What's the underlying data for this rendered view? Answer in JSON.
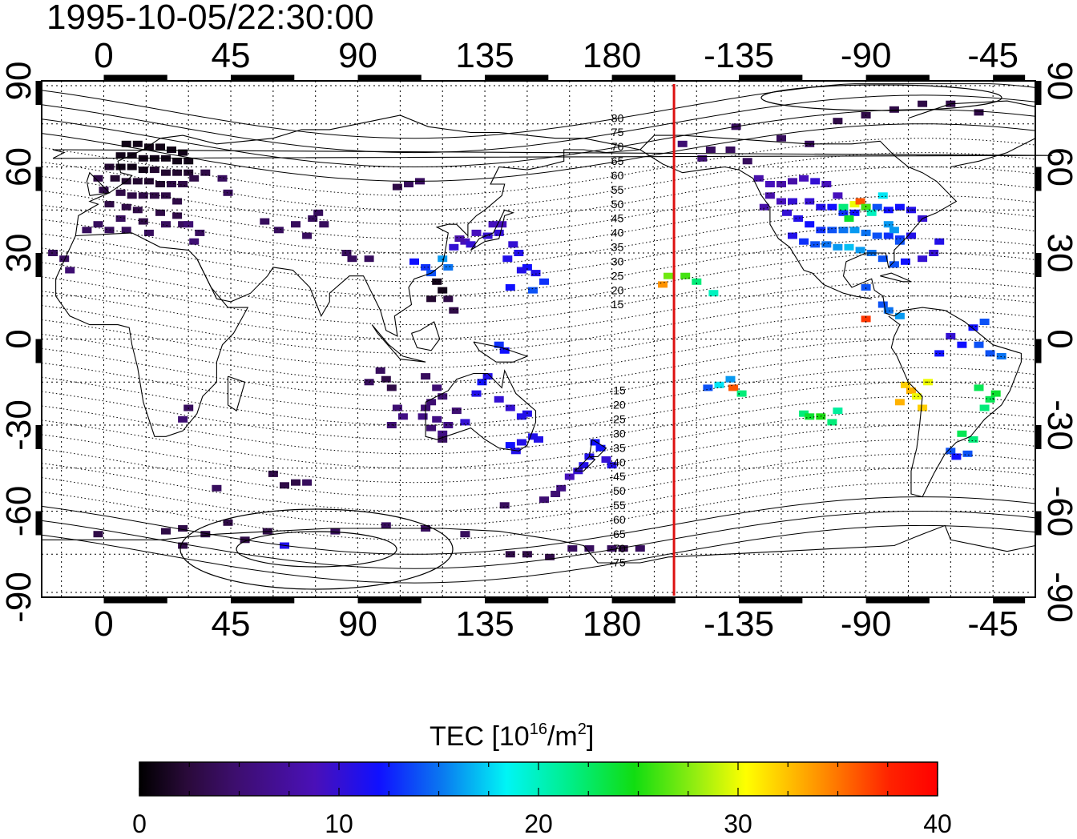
{
  "title": "1995-10-05/22:30:00",
  "colorbar": {
    "label_main": "TEC  [10",
    "label_exp1": "16",
    "label_mid": "/m",
    "label_exp2": "2",
    "label_end": "]",
    "min": 0,
    "max": 40,
    "ticks": [
      "0",
      "10",
      "20",
      "30",
      "40"
    ]
  },
  "axes": {
    "x_top_ticks": [
      "0",
      "45",
      "90",
      "135",
      "180",
      "-135",
      "-90",
      "-45"
    ],
    "x_bottom_ticks": [
      "0",
      "45",
      "90",
      "135",
      "180",
      "-135",
      "-90",
      "-45"
    ],
    "y_left_ticks": [
      "90",
      "60",
      "30",
      "0",
      "-30",
      "-60",
      "-90"
    ],
    "y_right_ticks": [
      "90",
      "60",
      "30",
      "0",
      "-30",
      "-60",
      "-90"
    ],
    "lon_range": [
      -22,
      330
    ],
    "lat_range": [
      -90,
      90
    ]
  },
  "magnetic_latitude_labels": [
    "80",
    "75",
    "70",
    "65",
    "60",
    "55",
    "50",
    "45",
    "40",
    "35",
    "30",
    "25",
    "20",
    "15",
    "-15",
    "-20",
    "-25",
    "-30",
    "-35",
    "-40",
    "-45",
    "-50",
    "-55",
    "-60",
    "-65",
    "-70",
    "-75"
  ],
  "terminator_longitude": 202,
  "colors": {
    "terminator": "#dd1111",
    "frame": "#000000",
    "grid": "#000000"
  },
  "chart_data": {
    "type": "heatmap",
    "description_units": "lon (deg, 0-360 east), lat (deg), TEC (1e16/m2)",
    "points": [
      [
        8,
        68,
        1
      ],
      [
        12,
        68,
        1
      ],
      [
        16,
        67,
        1
      ],
      [
        20,
        67,
        1
      ],
      [
        24,
        66,
        1
      ],
      [
        28,
        65,
        1
      ],
      [
        6,
        64,
        1
      ],
      [
        10,
        64,
        1
      ],
      [
        14,
        63,
        1
      ],
      [
        18,
        63,
        1
      ],
      [
        22,
        63,
        1
      ],
      [
        26,
        62,
        1
      ],
      [
        30,
        62,
        1
      ],
      [
        2,
        60,
        2
      ],
      [
        6,
        60,
        1
      ],
      [
        10,
        60,
        1
      ],
      [
        14,
        59,
        1
      ],
      [
        18,
        59,
        2
      ],
      [
        22,
        58,
        2
      ],
      [
        26,
        58,
        2
      ],
      [
        30,
        58,
        2
      ],
      [
        -2,
        56,
        3
      ],
      [
        4,
        56,
        2
      ],
      [
        8,
        55,
        2
      ],
      [
        12,
        55,
        2
      ],
      [
        16,
        55,
        2
      ],
      [
        20,
        54,
        2
      ],
      [
        24,
        54,
        3
      ],
      [
        28,
        54,
        3
      ],
      [
        32,
        56,
        3
      ],
      [
        0,
        52,
        3
      ],
      [
        6,
        51,
        3
      ],
      [
        10,
        50,
        3
      ],
      [
        14,
        50,
        3
      ],
      [
        18,
        50,
        3
      ],
      [
        22,
        50,
        3
      ],
      [
        26,
        48,
        3
      ],
      [
        2,
        47,
        3
      ],
      [
        8,
        46,
        3
      ],
      [
        12,
        45,
        3
      ],
      [
        20,
        44,
        3
      ],
      [
        26,
        43,
        3
      ],
      [
        6,
        42,
        4
      ],
      [
        14,
        41,
        3
      ],
      [
        22,
        40,
        4
      ],
      [
        28,
        40,
        4
      ],
      [
        -2,
        40,
        4
      ],
      [
        -6,
        38,
        4
      ],
      [
        2,
        38,
        4
      ],
      [
        8,
        38,
        4
      ],
      [
        16,
        37,
        4
      ],
      [
        34,
        37,
        4
      ],
      [
        -18,
        30,
        4
      ],
      [
        -14,
        28,
        4
      ],
      [
        -12,
        24,
        5
      ],
      [
        36,
        58,
        3
      ],
      [
        42,
        56,
        4
      ],
      [
        44,
        51,
        4
      ],
      [
        30,
        40,
        5
      ],
      [
        32,
        34,
        5
      ],
      [
        30,
        -24,
        4
      ],
      [
        28,
        -28,
        5
      ],
      [
        57,
        41,
        4
      ],
      [
        62,
        38,
        4
      ],
      [
        68,
        40,
        4
      ],
      [
        74,
        42,
        4
      ],
      [
        76,
        44,
        4
      ],
      [
        72,
        36,
        4
      ],
      [
        78,
        40,
        4
      ],
      [
        86,
        30,
        4
      ],
      [
        88,
        28,
        4
      ],
      [
        104,
        53,
        3
      ],
      [
        108,
        54,
        4
      ],
      [
        112,
        55,
        4
      ],
      [
        94,
        28,
        4
      ],
      [
        110,
        27,
        12
      ],
      [
        114,
        25,
        13
      ],
      [
        116,
        23,
        14
      ],
      [
        122,
        25,
        15
      ],
      [
        120,
        28,
        16
      ],
      [
        124,
        32,
        10
      ],
      [
        128,
        34,
        9
      ],
      [
        132,
        37,
        9
      ],
      [
        136,
        36,
        10
      ],
      [
        140,
        37,
        10
      ],
      [
        138,
        40,
        9
      ],
      [
        130,
        33,
        10
      ],
      [
        126,
        35,
        8
      ],
      [
        141,
        40,
        9
      ],
      [
        143,
        28,
        11
      ],
      [
        147,
        30,
        11
      ],
      [
        145,
        33,
        10
      ],
      [
        150,
        25,
        12
      ],
      [
        148,
        24,
        11
      ],
      [
        153,
        23,
        11
      ],
      [
        156,
        20,
        13
      ],
      [
        144,
        18,
        12
      ],
      [
        152,
        17,
        14
      ],
      [
        116,
        14,
        2
      ],
      [
        120,
        17,
        1
      ],
      [
        118,
        20,
        1
      ],
      [
        122,
        14,
        3
      ],
      [
        124,
        10,
        3
      ],
      [
        98,
        -11,
        4
      ],
      [
        100,
        -14,
        3
      ],
      [
        94,
        -15,
        4
      ],
      [
        102,
        -17,
        3
      ],
      [
        114,
        -13,
        4
      ],
      [
        118,
        -17,
        5
      ],
      [
        120,
        -20,
        5
      ],
      [
        116,
        -22,
        5
      ],
      [
        114,
        -24,
        5
      ],
      [
        113,
        -27,
        6
      ],
      [
        118,
        -28,
        6
      ],
      [
        122,
        -30,
        6
      ],
      [
        116,
        -31,
        5
      ],
      [
        120,
        -33,
        6
      ],
      [
        125,
        -25,
        5
      ],
      [
        128,
        -29,
        10
      ],
      [
        136,
        -13,
        11
      ],
      [
        134,
        -15,
        12
      ],
      [
        132,
        -19,
        11
      ],
      [
        140,
        -21,
        10
      ],
      [
        144,
        -24,
        10
      ],
      [
        148,
        -27,
        11
      ],
      [
        150,
        -26,
        11
      ],
      [
        144,
        -37,
        12
      ],
      [
        148,
        -36,
        11
      ],
      [
        152,
        -34,
        11
      ],
      [
        154,
        -35,
        11
      ],
      [
        146,
        -39,
        11
      ],
      [
        174,
        -36,
        12
      ],
      [
        176,
        -38,
        12
      ],
      [
        172,
        -41,
        11
      ],
      [
        170,
        -44,
        11
      ],
      [
        168,
        -46,
        10
      ],
      [
        178,
        -42,
        10
      ],
      [
        180,
        -44,
        11
      ],
      [
        165,
        -48,
        9
      ],
      [
        162,
        -52,
        6
      ],
      [
        160,
        -54,
        5
      ],
      [
        156,
        -56,
        5
      ],
      [
        142,
        -58,
        4
      ],
      [
        72,
        -50,
        4
      ],
      [
        60,
        -47,
        3
      ],
      [
        64,
        -51,
        3
      ],
      [
        68,
        -50,
        3
      ],
      [
        40,
        -52,
        4
      ],
      [
        22,
        -67,
        3
      ],
      [
        28,
        -66,
        3
      ],
      [
        36,
        -68,
        3
      ],
      [
        44,
        -64,
        3
      ],
      [
        50,
        -70,
        3
      ],
      [
        58,
        -67,
        3
      ],
      [
        64,
        -72,
        11
      ],
      [
        82,
        -67,
        4
      ],
      [
        100,
        -65,
        4
      ],
      [
        114,
        -66,
        4
      ],
      [
        128,
        -68,
        4
      ],
      [
        144,
        -75,
        3
      ],
      [
        150,
        -75,
        3
      ],
      [
        158,
        -76,
        3
      ],
      [
        166,
        -73,
        4
      ],
      [
        172,
        -73,
        4
      ],
      [
        180,
        -73,
        4
      ],
      [
        184,
        -73,
        3
      ],
      [
        190,
        -73,
        4
      ],
      [
        -2,
        -68,
        3
      ],
      [
        28,
        -72,
        3
      ],
      [
        200,
        22,
        27
      ],
      [
        198,
        19,
        34
      ],
      [
        206,
        22,
        26
      ],
      [
        210,
        20,
        22
      ],
      [
        216,
        16,
        20
      ],
      [
        218,
        -16,
        18
      ],
      [
        222,
        -14,
        16
      ],
      [
        223,
        -17,
        36
      ],
      [
        214,
        -17,
        14
      ],
      [
        226,
        -19,
        22
      ],
      [
        248,
        -26,
        22
      ],
      [
        250,
        -27,
        24
      ],
      [
        254,
        -27,
        25
      ],
      [
        258,
        -29,
        22
      ],
      [
        260,
        -25,
        21
      ],
      [
        205,
        68,
        5
      ],
      [
        215,
        66,
        4
      ],
      [
        222,
        66,
        4
      ],
      [
        228,
        62,
        4
      ],
      [
        212,
        63,
        5
      ],
      [
        232,
        56,
        8
      ],
      [
        236,
        54,
        9
      ],
      [
        240,
        54,
        8
      ],
      [
        244,
        55,
        8
      ],
      [
        248,
        56,
        9
      ],
      [
        252,
        55,
        10
      ],
      [
        256,
        54,
        9
      ],
      [
        260,
        50,
        9
      ],
      [
        236,
        50,
        8
      ],
      [
        240,
        48,
        9
      ],
      [
        244,
        48,
        10
      ],
      [
        250,
        48,
        10
      ],
      [
        254,
        46,
        11
      ],
      [
        258,
        46,
        12
      ],
      [
        262,
        44,
        13
      ],
      [
        266,
        44,
        12
      ],
      [
        270,
        46,
        13
      ],
      [
        274,
        46,
        14
      ],
      [
        278,
        45,
        12
      ],
      [
        282,
        46,
        12
      ],
      [
        286,
        45,
        11
      ],
      [
        290,
        42,
        10
      ],
      [
        234,
        46,
        8
      ],
      [
        242,
        44,
        10
      ],
      [
        246,
        42,
        11
      ],
      [
        250,
        40,
        12
      ],
      [
        254,
        38,
        13
      ],
      [
        258,
        38,
        14
      ],
      [
        262,
        38,
        15
      ],
      [
        266,
        38,
        16
      ],
      [
        270,
        37,
        15
      ],
      [
        274,
        36,
        14
      ],
      [
        278,
        36,
        13
      ],
      [
        282,
        35,
        13
      ],
      [
        286,
        36,
        11
      ],
      [
        244,
        36,
        11
      ],
      [
        248,
        34,
        13
      ],
      [
        252,
        33,
        14
      ],
      [
        256,
        33,
        15
      ],
      [
        260,
        32,
        16
      ],
      [
        264,
        32,
        17
      ],
      [
        268,
        31,
        16
      ],
      [
        272,
        30,
        15
      ],
      [
        276,
        28,
        14
      ],
      [
        280,
        26,
        14
      ],
      [
        284,
        27,
        12
      ],
      [
        290,
        28,
        10
      ],
      [
        294,
        30,
        10
      ],
      [
        296,
        34,
        11
      ],
      [
        262,
        46,
        22
      ],
      [
        266,
        47,
        30
      ],
      [
        268,
        48,
        36
      ],
      [
        270,
        46,
        26
      ],
      [
        272,
        44,
        20
      ],
      [
        264,
        42,
        24
      ],
      [
        276,
        50,
        18
      ],
      [
        278,
        40,
        16
      ],
      [
        280,
        38,
        16
      ],
      [
        282,
        34,
        14
      ],
      [
        270,
        18,
        14
      ],
      [
        276,
        12,
        14
      ],
      [
        278,
        10,
        15
      ],
      [
        282,
        8,
        16
      ],
      [
        270,
        7,
        37
      ],
      [
        284,
        -16,
        32
      ],
      [
        286,
        -18,
        33
      ],
      [
        288,
        -20,
        30
      ],
      [
        282,
        -22,
        33
      ],
      [
        290,
        -24,
        32
      ],
      [
        292,
        -15,
        30
      ],
      [
        296,
        -5,
        12
      ],
      [
        300,
        1,
        10
      ],
      [
        304,
        -2,
        12
      ],
      [
        310,
        -2,
        14
      ],
      [
        314,
        -5,
        14
      ],
      [
        318,
        -6,
        15
      ],
      [
        308,
        4,
        12
      ],
      [
        312,
        6,
        14
      ],
      [
        310,
        -17,
        23
      ],
      [
        314,
        -21,
        23
      ],
      [
        312,
        -24,
        22
      ],
      [
        316,
        -19,
        24
      ],
      [
        304,
        -33,
        23
      ],
      [
        308,
        -35,
        22
      ],
      [
        300,
        -39,
        14
      ],
      [
        302,
        -41,
        12
      ],
      [
        306,
        -40,
        14
      ],
      [
        140,
        -2,
        13
      ],
      [
        142,
        -4,
        12
      ],
      [
        102,
        -30,
        5
      ],
      [
        106,
        -27,
        6
      ],
      [
        104,
        -24,
        5
      ],
      [
        120,
        -35,
        4
      ],
      [
        224,
        74,
        4
      ],
      [
        260,
        76,
        3
      ],
      [
        270,
        78,
        3
      ],
      [
        280,
        80,
        3
      ],
      [
        290,
        82,
        3
      ],
      [
        300,
        82,
        3
      ],
      [
        310,
        79,
        3
      ],
      [
        240,
        70,
        4
      ],
      [
        250,
        68,
        4
      ]
    ]
  }
}
